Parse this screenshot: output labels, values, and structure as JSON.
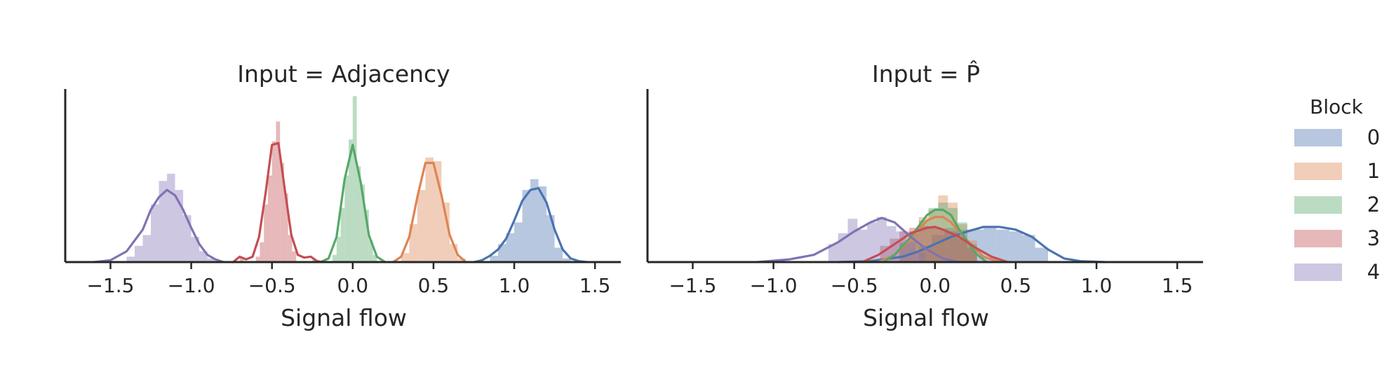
{
  "legend": {
    "title": "Block",
    "placement": "right",
    "entries": [
      {
        "label": "0",
        "color": "#4c72b0"
      },
      {
        "label": "1",
        "color": "#dd8452"
      },
      {
        "label": "2",
        "color": "#55a868"
      },
      {
        "label": "3",
        "color": "#c44e52"
      },
      {
        "label": "4",
        "color": "#8172b3"
      }
    ]
  },
  "chart_data": [
    {
      "type": "histogram+kde",
      "title": "Input = Adjacency",
      "xlabel": "Signal flow",
      "ylabel": "",
      "xlim": [
        -1.78,
        1.66
      ],
      "ylim": [
        0,
        9.6
      ],
      "xticks": [
        "-1.5",
        "-1.0",
        "-0.5",
        "0.0",
        "0.5",
        "1.0",
        "1.5"
      ],
      "xtick_values": [
        -1.5,
        -1.0,
        -0.5,
        0.0,
        0.5,
        1.0,
        1.5
      ],
      "grid": false,
      "series": [
        {
          "name": "0",
          "color": "#4c72b0",
          "bin_width": 0.05,
          "bins": [
            [
              0.85,
              0.35
            ],
            [
              0.9,
              1.0
            ],
            [
              0.95,
              1.6
            ],
            [
              1.0,
              2.2
            ],
            [
              1.05,
              4.0
            ],
            [
              1.1,
              4.6
            ],
            [
              1.15,
              4.2
            ],
            [
              1.2,
              2.6
            ],
            [
              1.25,
              0.8
            ],
            [
              1.3,
              0.2
            ]
          ],
          "kde": [
            [
              0.75,
              0.0
            ],
            [
              0.8,
              0.1
            ],
            [
              0.85,
              0.35
            ],
            [
              0.9,
              0.7
            ],
            [
              0.95,
              1.3
            ],
            [
              1.0,
              2.3
            ],
            [
              1.05,
              3.4
            ],
            [
              1.1,
              4.0
            ],
            [
              1.15,
              4.1
            ],
            [
              1.2,
              3.3
            ],
            [
              1.25,
              1.8
            ],
            [
              1.3,
              0.7
            ],
            [
              1.35,
              0.2
            ],
            [
              1.4,
              0.05
            ],
            [
              1.45,
              0.0
            ]
          ]
        },
        {
          "name": "1",
          "color": "#dd8452",
          "bin_width": 0.05,
          "bins": [
            [
              0.3,
              0.5
            ],
            [
              0.35,
              2.1
            ],
            [
              0.4,
              4.0
            ],
            [
              0.45,
              5.8
            ],
            [
              0.5,
              5.6
            ],
            [
              0.55,
              3.3
            ],
            [
              0.6,
              1.0
            ],
            [
              0.65,
              0.2
            ]
          ],
          "kde": [
            [
              0.25,
              0.0
            ],
            [
              0.3,
              0.3
            ],
            [
              0.35,
              1.4
            ],
            [
              0.4,
              3.6
            ],
            [
              0.45,
              5.5
            ],
            [
              0.5,
              5.5
            ],
            [
              0.55,
              3.7
            ],
            [
              0.6,
              1.5
            ],
            [
              0.65,
              0.4
            ],
            [
              0.7,
              0.0
            ]
          ]
        },
        {
          "name": "2",
          "color": "#55a868",
          "bin_width": 0.025,
          "bins": [
            [
              -0.125,
              0.4
            ],
            [
              -0.1,
              1.4
            ],
            [
              -0.075,
              3.0
            ],
            [
              -0.05,
              4.8
            ],
            [
              -0.025,
              6.8
            ],
            [
              0.0,
              9.2
            ],
            [
              0.025,
              5.3
            ],
            [
              0.05,
              4.3
            ],
            [
              0.075,
              2.9
            ],
            [
              0.1,
              1.2
            ],
            [
              0.125,
              0.4
            ]
          ],
          "kde": [
            [
              -0.2,
              0.0
            ],
            [
              -0.15,
              0.2
            ],
            [
              -0.1,
              1.4
            ],
            [
              -0.05,
              4.6
            ],
            [
              0.0,
              6.5
            ],
            [
              0.05,
              4.4
            ],
            [
              0.1,
              1.5
            ],
            [
              0.15,
              0.3
            ],
            [
              0.2,
              0.0
            ]
          ]
        },
        {
          "name": "3",
          "color": "#c44e52",
          "bin_width": 0.025,
          "bins": [
            [
              -0.6,
              0.3
            ],
            [
              -0.575,
              1.1
            ],
            [
              -0.55,
              3.2
            ],
            [
              -0.525,
              4.8
            ],
            [
              -0.5,
              6.7
            ],
            [
              -0.475,
              7.8
            ],
            [
              -0.45,
              5.5
            ],
            [
              -0.425,
              3.8
            ],
            [
              -0.4,
              1.5
            ],
            [
              -0.375,
              0.6
            ],
            [
              -0.7,
              0.25
            ],
            [
              -0.25,
              0.15
            ]
          ],
          "kde": [
            [
              -0.74,
              0.0
            ],
            [
              -0.7,
              0.3
            ],
            [
              -0.66,
              0.15
            ],
            [
              -0.62,
              0.3
            ],
            [
              -0.58,
              1.4
            ],
            [
              -0.54,
              3.8
            ],
            [
              -0.5,
              6.5
            ],
            [
              -0.46,
              6.6
            ],
            [
              -0.42,
              4.0
            ],
            [
              -0.38,
              1.5
            ],
            [
              -0.34,
              0.4
            ],
            [
              -0.3,
              0.25
            ],
            [
              -0.26,
              0.3
            ],
            [
              -0.22,
              0.05
            ],
            [
              -0.19,
              0.0
            ]
          ]
        },
        {
          "name": "4",
          "color": "#8172b3",
          "bin_width": 0.05,
          "bins": [
            [
              -1.4,
              0.3
            ],
            [
              -1.35,
              0.9
            ],
            [
              -1.3,
              1.5
            ],
            [
              -1.25,
              3.2
            ],
            [
              -1.2,
              4.5
            ],
            [
              -1.15,
              4.9
            ],
            [
              -1.1,
              4.0
            ],
            [
              -1.05,
              2.6
            ],
            [
              -1.0,
              1.4
            ],
            [
              -0.95,
              0.6
            ],
            [
              -0.9,
              0.2
            ]
          ],
          "kde": [
            [
              -1.6,
              0.0
            ],
            [
              -1.5,
              0.1
            ],
            [
              -1.4,
              0.6
            ],
            [
              -1.3,
              1.8
            ],
            [
              -1.25,
              2.9
            ],
            [
              -1.2,
              3.6
            ],
            [
              -1.15,
              4.0
            ],
            [
              -1.1,
              3.7
            ],
            [
              -1.05,
              2.9
            ],
            [
              -1.0,
              1.9
            ],
            [
              -0.95,
              1.0
            ],
            [
              -0.9,
              0.4
            ],
            [
              -0.85,
              0.15
            ],
            [
              -0.8,
              0.0
            ]
          ]
        }
      ]
    },
    {
      "type": "histogram+kde",
      "title": "Input = P̂",
      "xlabel": "Signal flow",
      "ylabel": "",
      "xlim": [
        -1.78,
        1.66
      ],
      "ylim": [
        0,
        9.6
      ],
      "xticks": [
        "-1.5",
        "-1.0",
        "-0.5",
        "0.0",
        "0.5",
        "1.0",
        "1.5"
      ],
      "xtick_values": [
        -1.5,
        -1.0,
        -0.5,
        0.0,
        0.5,
        1.0,
        1.5
      ],
      "grid": false,
      "series": [
        {
          "name": "0",
          "color": "#4c72b0",
          "bin_width": 0.08,
          "bins": [
            [
              -0.1,
              0.9
            ],
            [
              -0.02,
              1.5
            ],
            [
              0.06,
              1.9
            ],
            [
              0.14,
              1.8
            ],
            [
              0.22,
              1.8
            ],
            [
              0.3,
              1.9
            ],
            [
              0.38,
              1.8
            ],
            [
              0.46,
              1.7
            ],
            [
              0.54,
              1.5
            ],
            [
              0.62,
              0.8
            ]
          ],
          "kde": [
            [
              -0.6,
              0.0
            ],
            [
              -0.4,
              0.05
            ],
            [
              -0.2,
              0.3
            ],
            [
              -0.1,
              0.6
            ],
            [
              0.0,
              1.0
            ],
            [
              0.1,
              1.4
            ],
            [
              0.2,
              1.7
            ],
            [
              0.3,
              1.95
            ],
            [
              0.4,
              1.95
            ],
            [
              0.5,
              1.8
            ],
            [
              0.6,
              1.4
            ],
            [
              0.7,
              0.7
            ],
            [
              0.8,
              0.2
            ],
            [
              0.9,
              0.05
            ],
            [
              1.05,
              0.0
            ]
          ]
        },
        {
          "name": "1",
          "color": "#dd8452",
          "bin_width": 0.06,
          "bins": [
            [
              -0.22,
              1.0
            ],
            [
              -0.16,
              1.6
            ],
            [
              -0.1,
              2.5
            ],
            [
              -0.04,
              2.9
            ],
            [
              0.02,
              3.7
            ],
            [
              0.08,
              3.3
            ],
            [
              0.14,
              2.1
            ],
            [
              0.2,
              1.2
            ]
          ],
          "kde": [
            [
              -0.35,
              0.0
            ],
            [
              -0.25,
              0.4
            ],
            [
              -0.15,
              1.3
            ],
            [
              -0.05,
              2.3
            ],
            [
              0.0,
              2.5
            ],
            [
              0.05,
              2.5
            ],
            [
              0.1,
              2.2
            ],
            [
              0.2,
              1.2
            ],
            [
              0.3,
              0.3
            ],
            [
              0.4,
              0.0
            ]
          ]
        },
        {
          "name": "2",
          "color": "#55a868",
          "bin_width": 0.06,
          "bins": [
            [
              -0.22,
              1.1
            ],
            [
              -0.16,
              1.7
            ],
            [
              -0.1,
              2.3
            ],
            [
              -0.04,
              3.0
            ],
            [
              0.02,
              3.3
            ],
            [
              0.08,
              3.0
            ],
            [
              0.14,
              2.2
            ],
            [
              0.2,
              1.0
            ]
          ],
          "kde": [
            [
              -0.32,
              0.0
            ],
            [
              -0.25,
              0.4
            ],
            [
              -0.15,
              1.4
            ],
            [
              -0.05,
              2.6
            ],
            [
              0.0,
              2.9
            ],
            [
              0.05,
              2.9
            ],
            [
              0.1,
              2.6
            ],
            [
              0.15,
              1.8
            ],
            [
              0.25,
              0.5
            ],
            [
              0.32,
              0.0
            ]
          ]
        },
        {
          "name": "3",
          "color": "#c44e52",
          "bin_width": 0.06,
          "bins": [
            [
              -0.34,
              0.9
            ],
            [
              -0.28,
              1.3
            ],
            [
              -0.22,
              1.7
            ],
            [
              -0.16,
              1.9
            ],
            [
              -0.1,
              2.0
            ],
            [
              -0.04,
              1.9
            ],
            [
              0.02,
              1.8
            ],
            [
              0.08,
              1.7
            ],
            [
              0.14,
              1.3
            ],
            [
              0.2,
              0.8
            ]
          ],
          "kde": [
            [
              -0.45,
              0.0
            ],
            [
              -0.35,
              0.4
            ],
            [
              -0.25,
              1.0
            ],
            [
              -0.15,
              1.6
            ],
            [
              -0.05,
              1.9
            ],
            [
              0.0,
              1.95
            ],
            [
              0.05,
              1.8
            ],
            [
              0.15,
              1.4
            ],
            [
              0.25,
              0.8
            ],
            [
              0.35,
              0.3
            ],
            [
              0.45,
              0.0
            ]
          ]
        },
        {
          "name": "4",
          "color": "#8172b3",
          "bin_width": 0.06,
          "bins": [
            [
              -0.66,
              1.0
            ],
            [
              -0.6,
              1.6
            ],
            [
              -0.54,
              2.4
            ],
            [
              -0.48,
              1.8
            ],
            [
              -0.42,
              2.2
            ],
            [
              -0.36,
              2.5
            ],
            [
              -0.3,
              2.0
            ],
            [
              -0.24,
              1.7
            ],
            [
              -0.18,
              1.1
            ],
            [
              -0.12,
              0.5
            ]
          ],
          "kde": [
            [
              -1.1,
              0.0
            ],
            [
              -0.9,
              0.15
            ],
            [
              -0.75,
              0.4
            ],
            [
              -0.6,
              1.1
            ],
            [
              -0.5,
              1.7
            ],
            [
              -0.4,
              2.2
            ],
            [
              -0.33,
              2.45
            ],
            [
              -0.25,
              2.2
            ],
            [
              -0.15,
              1.4
            ],
            [
              -0.05,
              0.7
            ],
            [
              0.05,
              0.2
            ],
            [
              0.15,
              0.0
            ]
          ]
        }
      ]
    }
  ]
}
